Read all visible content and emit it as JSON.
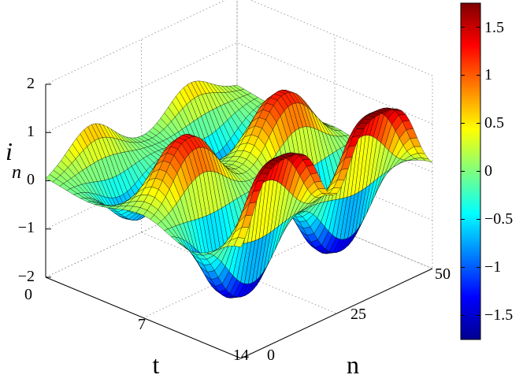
{
  "chart_data": {
    "type": "surface",
    "xlabel": "t",
    "ylabel": "n",
    "zlabel": "i",
    "zlabel_sub": "n",
    "xlim": [
      0,
      14
    ],
    "ylim": [
      0,
      50
    ],
    "zlim": [
      -2,
      2
    ],
    "x_ticks": [
      "0",
      "7",
      "14"
    ],
    "y_ticks": [
      "0",
      "25",
      "50"
    ],
    "z_ticks": [
      "−2",
      "−1",
      "0",
      "1",
      "2"
    ],
    "grid": true,
    "colormap": "jet",
    "colorbar_range": [
      -1.75,
      1.75
    ],
    "colorbar_ticks": [
      "1.5",
      "1",
      "0.5",
      "0",
      "−0.5",
      "−1",
      "−1.5"
    ],
    "surface_description_values": {
      "n_peak_rows": 2,
      "max_value": 1.75,
      "min_value": -1.75
    }
  }
}
